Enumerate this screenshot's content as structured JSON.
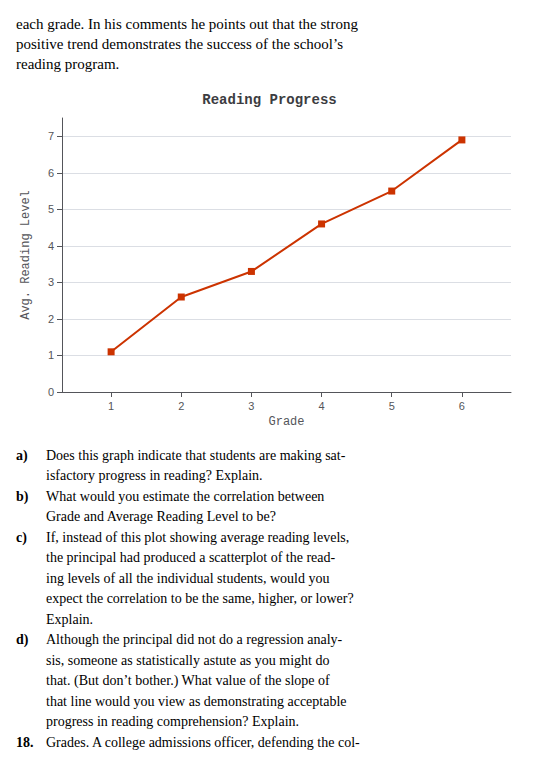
{
  "chart_data": {
    "type": "line",
    "title": "Reading Progress",
    "subtitle": "each grade. In his comments he points out that the strong\npositive trend demonstrates the success of the school’s\nreading program.",
    "xlabel": "Grade",
    "ylabel": "Avg. Reading Level",
    "x": [
      1,
      2,
      3,
      4,
      5,
      6
    ],
    "values": [
      1.1,
      2.6,
      3.3,
      4.6,
      5.5,
      6.9
    ],
    "color": "#cc3300",
    "marker": "square",
    "xlim": [
      0.3,
      6.7
    ],
    "ylim": [
      0,
      7.5
    ],
    "xticks": [
      1,
      2,
      3,
      4,
      5,
      6
    ],
    "yticks": [
      0,
      1,
      2,
      3,
      4,
      5,
      6,
      7
    ],
    "grid": "y",
    "annotations": [
      {
        "label": "a)",
        "text": [
          "Does this graph indicate that students are making sat-",
          "isfactory progress in reading? Explain."
        ]
      },
      {
        "label": "b)",
        "text": [
          "What would you estimate the correlation between",
          "Grade and Average Reading Level to be?"
        ]
      },
      {
        "label": "c)",
        "text": [
          "If, instead of this plot showing average reading levels,",
          "the principal had produced a scatterplot of the read-",
          "ing levels of all the individual students, would you",
          "expect the correlation to be the same, higher, or lower?",
          "Explain."
        ]
      },
      {
        "label": "d)",
        "text": [
          "Although the principal did not do a regression analy-",
          "sis, someone as statistically astute as you might do",
          "that. (But don’t bother.) What value of the slope of",
          "that line would you view as demonstrating acceptable",
          "progress in reading comprehension? Explain."
        ]
      },
      {
        "label": "18.",
        "text": [
          "Grades. A college admissions officer, defending the col-"
        ]
      }
    ]
  }
}
